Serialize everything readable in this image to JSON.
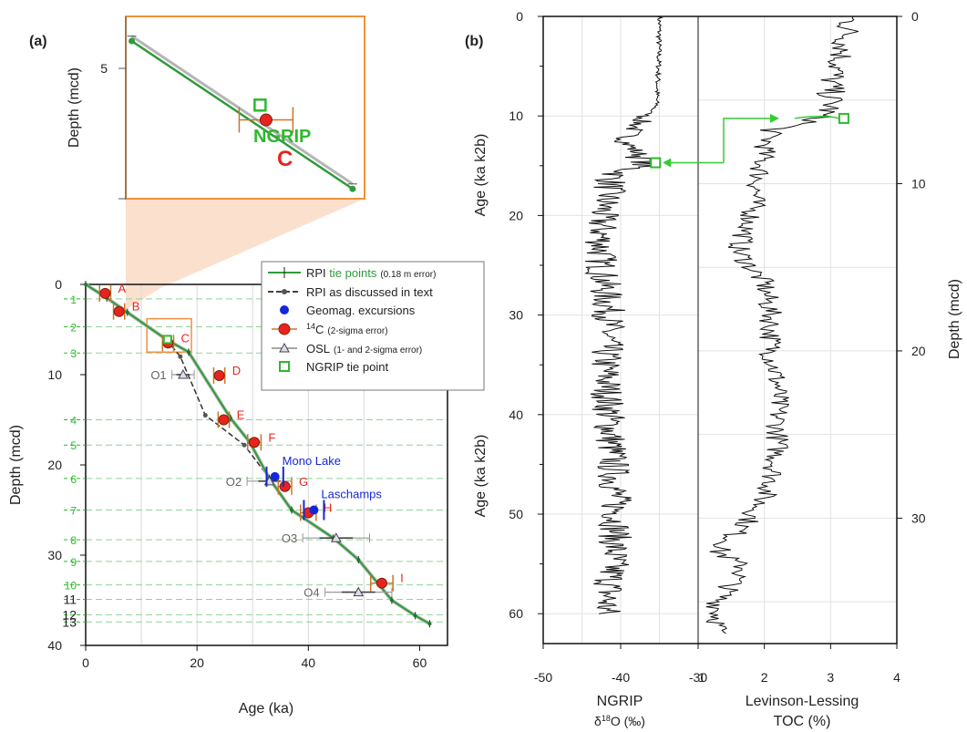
{
  "panel_labels": {
    "a": "(a)",
    "b": "(b)"
  },
  "chart_data": [
    {
      "id": "age_depth",
      "type": "scatter",
      "xlabel": "Age (ka)",
      "ylabel": "Depth (mcd)",
      "xlim": [
        0,
        65
      ],
      "ylim": [
        40,
        0
      ],
      "xticks": [
        0,
        20,
        40,
        60
      ],
      "yticks": [
        0,
        10,
        20,
        30,
        40
      ],
      "legend_position": "top-right",
      "legend": {
        "rpi_prefix": "RPI ",
        "rpi_tie": "tie points",
        "rpi_err": "(0.18 m error)",
        "rpi_discussed": "RPI as discussed in text",
        "geomag": "Geomag. excursions",
        "c14_sup": "14",
        "c14_main": "C",
        "c14_err": "(2-sigma error)",
        "osl_main": "OSL",
        "osl_err": "(1- and 2-sigma error)",
        "ngrip": "NGRIP tie point"
      },
      "rpi_tie_points": [
        {
          "label": "1",
          "age": 0,
          "depth": 0
        },
        {
          "label": "2",
          "age": 3.8,
          "depth": 1.5
        },
        {
          "label": "3",
          "age": 7.5,
          "depth": 3.1
        },
        {
          "label": "4",
          "age": 14.5,
          "depth": 6.1
        },
        {
          "label": "5",
          "age": 18.5,
          "depth": 7.5
        },
        {
          "label": "6",
          "age": 26,
          "depth": 14.8
        },
        {
          "label": "7",
          "age": 29.5,
          "depth": 17.5
        },
        {
          "label": "8",
          "age": 33,
          "depth": 21.5
        },
        {
          "label": "9",
          "age": 37,
          "depth": 25
        },
        {
          "label": "10",
          "age": 44.5,
          "depth": 28.1
        },
        {
          "label": "11",
          "age": 49,
          "depth": 30.5
        },
        {
          "label": "12",
          "age": 55,
          "depth": 35
        },
        {
          "label": "13",
          "age": 59.2,
          "depth": 36.7
        },
        {
          "label": "",
          "age": 61.8,
          "depth": 37.6
        }
      ],
      "rpi_discussed": [
        {
          "age": 14.5,
          "depth": 6.1
        },
        {
          "age": 17,
          "depth": 8
        },
        {
          "age": 21.5,
          "depth": 14.5
        },
        {
          "age": 28.5,
          "depth": 17.8
        }
      ],
      "tie_level_labels": [
        "1",
        "2",
        "3",
        "4",
        "5",
        "6",
        "7",
        "8",
        "9",
        "10",
        "11",
        "12",
        "13"
      ],
      "tie_level_depths": [
        1.6,
        4.7,
        7.6,
        15,
        17.8,
        21.5,
        25,
        28.3,
        30.7,
        33.3,
        34.9,
        36.6,
        37.4
      ],
      "c14_points": [
        {
          "label": "A",
          "age": 3.5,
          "depth": 1,
          "xerr": 1
        },
        {
          "label": "B",
          "age": 6,
          "depth": 3,
          "xerr": 1
        },
        {
          "label": "C",
          "age": 14.8,
          "depth": 6.5,
          "xerr": 1
        },
        {
          "label": "D",
          "age": 24,
          "depth": 10.1,
          "xerr": 1
        },
        {
          "label": "E",
          "age": 24.8,
          "depth": 15,
          "xerr": 1
        },
        {
          "label": "F",
          "age": 30.3,
          "depth": 17.5,
          "xerr": 1.2
        },
        {
          "label": "G",
          "age": 35.8,
          "depth": 22.4,
          "xerr": 1.2
        },
        {
          "label": "H",
          "age": 40,
          "depth": 25.3,
          "xerr": 1.4
        },
        {
          "label": "I",
          "age": 53.2,
          "depth": 33.1,
          "xerr": 2
        }
      ],
      "osl_points": [
        {
          "label": "O1",
          "age": 17.5,
          "depth": 10,
          "xerr1": 1.2,
          "xerr2": 2
        },
        {
          "label": "O2",
          "age": 33,
          "depth": 21.8,
          "xerr1": 2,
          "xerr2": 4
        },
        {
          "label": "O3",
          "age": 45,
          "depth": 28.1,
          "xerr1": 3,
          "xerr2": 6
        },
        {
          "label": "O4",
          "age": 49,
          "depth": 34.1,
          "xerr1": 3,
          "xerr2": 6
        }
      ],
      "geomag_points": [
        {
          "label": "Mono Lake",
          "age": 34,
          "depth": 21.3,
          "xerr": 1.5
        },
        {
          "label": "Laschamps",
          "age": 41,
          "depth": 25,
          "xerr": 1.8
        }
      ],
      "ngrip_tie": {
        "age": 14.7,
        "depth": 6.1
      },
      "zoom_box": {
        "age_range": [
          11,
          19
        ],
        "depth_range": [
          3.8,
          7.5
        ]
      }
    },
    {
      "id": "inset",
      "type": "line",
      "ylabel": "Depth (mcd)",
      "ytick_label": "5",
      "ytick_value": 5,
      "xlim": [
        11,
        19
      ],
      "ylim": [
        7.5,
        3.8
      ],
      "labels": {
        "ngrip": "NGRIP",
        "c": "C"
      },
      "green_line": [
        {
          "age": 11.2,
          "depth": 4.3
        },
        {
          "age": 18.6,
          "depth": 7.3
        }
      ],
      "grey_line": [
        {
          "age": 11.2,
          "depth": 4.2
        },
        {
          "age": 18.6,
          "depth": 7.2
        }
      ],
      "c14": {
        "age": 15.7,
        "depth": 5.9,
        "xerr": 0.9
      },
      "ngrip_tie": {
        "age": 15.5,
        "depth": 5.6
      }
    },
    {
      "id": "ngrip",
      "type": "line",
      "xlabel": "NGRIP",
      "xlabel2_pre": "δ",
      "xlabel2_sup": "18",
      "xlabel2_post": "O (‰)",
      "ylabel_upper": "Age (ka k2b)",
      "ylabel_lower": "Age (ka k2b)",
      "xlim": [
        -50,
        -30
      ],
      "ylim": [
        63,
        0
      ],
      "xticks": [
        -50,
        -40,
        -30
      ],
      "yticks": [
        0,
        10,
        20,
        30,
        40,
        50,
        60
      ],
      "tie_point": {
        "d18o": -35.5,
        "age": 14.7
      },
      "series": [
        {
          "age": 0,
          "d18o": -35
        },
        {
          "age": 5,
          "d18o": -35.1
        },
        {
          "age": 9,
          "d18o": -35.4
        },
        {
          "age": 11,
          "d18o": -38
        },
        {
          "age": 12.5,
          "d18o": -39.5
        },
        {
          "age": 14.7,
          "d18o": -36.5
        },
        {
          "age": 16,
          "d18o": -41
        },
        {
          "age": 20,
          "d18o": -42.5
        },
        {
          "age": 25,
          "d18o": -42.5
        },
        {
          "age": 30,
          "d18o": -41.5
        },
        {
          "age": 35,
          "d18o": -42
        },
        {
          "age": 40,
          "d18o": -41.5
        },
        {
          "age": 45,
          "d18o": -41
        },
        {
          "age": 50,
          "d18o": -40.5
        },
        {
          "age": 55,
          "d18o": -41
        },
        {
          "age": 60,
          "d18o": -42
        }
      ]
    },
    {
      "id": "toc",
      "type": "line",
      "xlabel": "Levinson-Lessing",
      "xlabel2": "TOC (%)",
      "ylabel": "Depth (mcd)",
      "xlim": [
        1,
        4
      ],
      "ylim": [
        37.5,
        0
      ],
      "xticks": [
        1,
        2,
        3,
        4
      ],
      "yticks": [
        0,
        10,
        20,
        30
      ],
      "tie_point": {
        "toc": 3.2,
        "depth": 6.1
      },
      "series": [
        {
          "depth": 0,
          "toc": 3.3
        },
        {
          "depth": 2,
          "toc": 3.2
        },
        {
          "depth": 4,
          "toc": 3.0
        },
        {
          "depth": 5.5,
          "toc": 3.0
        },
        {
          "depth": 6.3,
          "toc": 2.7
        },
        {
          "depth": 6.8,
          "toc": 2.1
        },
        {
          "depth": 8,
          "toc": 2.0
        },
        {
          "depth": 10,
          "toc": 1.9
        },
        {
          "depth": 12,
          "toc": 1.8
        },
        {
          "depth": 14,
          "toc": 1.6
        },
        {
          "depth": 16,
          "toc": 2.0
        },
        {
          "depth": 18,
          "toc": 2.1
        },
        {
          "depth": 20,
          "toc": 2.1
        },
        {
          "depth": 22,
          "toc": 2.2
        },
        {
          "depth": 24,
          "toc": 2.2
        },
        {
          "depth": 26,
          "toc": 2.2
        },
        {
          "depth": 28,
          "toc": 2.1
        },
        {
          "depth": 30,
          "toc": 1.8
        },
        {
          "depth": 32,
          "toc": 1.3
        },
        {
          "depth": 33,
          "toc": 1.7
        },
        {
          "depth": 35,
          "toc": 1.3
        },
        {
          "depth": 37,
          "toc": 1.3
        }
      ]
    }
  ]
}
